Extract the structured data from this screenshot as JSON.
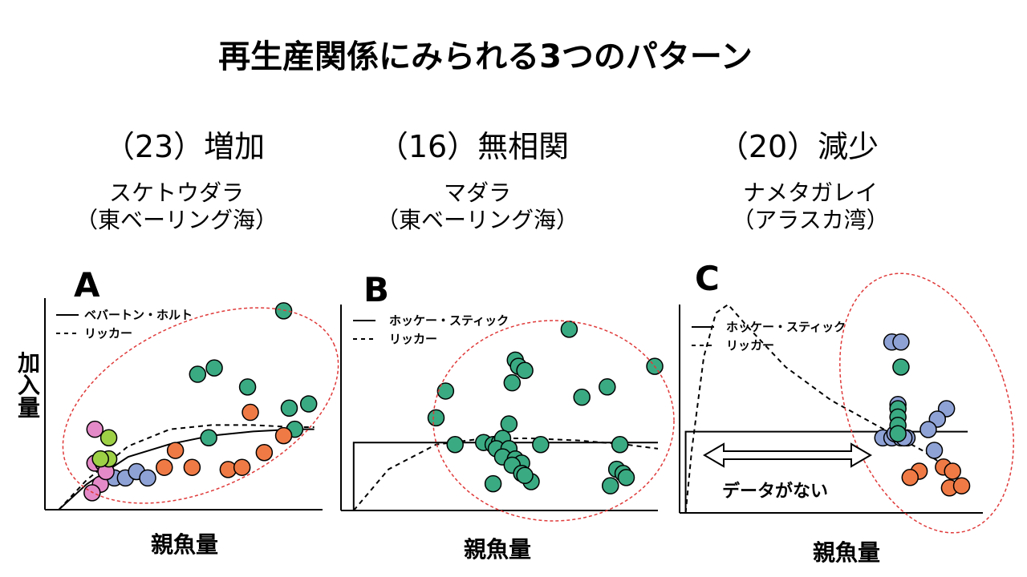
{
  "title": "再生産関係にみられる3つのパターン",
  "y_label": "加入量",
  "x_label": "親魚量",
  "panels": [
    {
      "heading": "（23）増加",
      "species_line1": "スケトウダラ",
      "species_line2": "（東ベーリング海）"
    },
    {
      "heading": "（16）無相関",
      "species_line1": "マダラ",
      "species_line2": "（東ベーリング海）"
    },
    {
      "heading": "（20）減少",
      "species_line1": "ナメタガレイ",
      "species_line2": "（アラスカ湾）"
    }
  ],
  "colors": {
    "green": "#3aaa82",
    "orange": "#f07a45",
    "blue": "#8fa2d6",
    "pink": "#e58ac8",
    "lime": "#9ed046",
    "ellipse": "#e03a3a"
  },
  "chart_data": [
    {
      "type": "scatter",
      "panel_label": "A",
      "x_label": "親魚量",
      "y_label": "加入量",
      "legend": [
        {
          "label": "ベバートン・ホルト",
          "style": "solid"
        },
        {
          "label": "リッカー",
          "style": "dashed"
        }
      ],
      "xlim": [
        0,
        100
      ],
      "ylim": [
        0,
        100
      ],
      "series": [
        {
          "color": "green",
          "points": [
            [
              86,
              94
            ],
            [
              55,
              64
            ],
            [
              61,
              67
            ],
            [
              73,
              58
            ],
            [
              95,
              50
            ],
            [
              88,
              48
            ],
            [
              90,
              38
            ],
            [
              59,
              34
            ]
          ]
        },
        {
          "color": "orange",
          "points": [
            [
              74,
              46
            ],
            [
              86,
              35
            ],
            [
              79,
              27
            ],
            [
              47,
              28
            ],
            [
              43,
              20
            ],
            [
              53,
              20
            ],
            [
              66,
              19
            ],
            [
              71,
              20
            ]
          ]
        },
        {
          "color": "blue",
          "points": [
            [
              25,
              15
            ],
            [
              29,
              15
            ],
            [
              33,
              18
            ],
            [
              37,
              15
            ]
          ]
        },
        {
          "color": "pink",
          "points": [
            [
              18,
              38
            ],
            [
              18,
              22
            ],
            [
              21,
              22
            ],
            [
              20,
              12
            ],
            [
              17,
              8
            ],
            [
              22,
              18
            ]
          ]
        },
        {
          "color": "lime",
          "points": [
            [
              23,
              34
            ],
            [
              23,
              24
            ],
            [
              20,
              24
            ]
          ]
        }
      ],
      "curves": [
        {
          "name": "ベバートン・ホルト",
          "style": "solid",
          "points": [
            [
              5,
              0
            ],
            [
              15,
              12
            ],
            [
              30,
              25
            ],
            [
              45,
              31
            ],
            [
              60,
              35
            ],
            [
              75,
              37
            ],
            [
              90,
              38
            ],
            [
              97,
              38
            ]
          ]
        },
        {
          "name": "リッカー",
          "style": "dashed",
          "points": [
            [
              5,
              0
            ],
            [
              15,
              14
            ],
            [
              30,
              30
            ],
            [
              45,
              38
            ],
            [
              60,
              40
            ],
            [
              75,
              40
            ],
            [
              90,
              39
            ],
            [
              97,
              39
            ]
          ]
        }
      ],
      "highlight_ellipse": true
    },
    {
      "type": "scatter",
      "panel_label": "B",
      "x_label": "親魚量",
      "y_label": "加入量",
      "legend": [
        {
          "label": "ホッケー・スティック",
          "style": "solid"
        },
        {
          "label": "リッカー",
          "style": "dashed"
        }
      ],
      "xlim": [
        0,
        100
      ],
      "ylim": [
        0,
        100
      ],
      "series": [
        {
          "color": "green",
          "points": [
            [
              72,
              88
            ],
            [
              55,
              73
            ],
            [
              56,
              70
            ],
            [
              58,
              68
            ],
            [
              54,
              62
            ],
            [
              99,
              70
            ],
            [
              33,
              58
            ],
            [
              84,
              60
            ],
            [
              76,
              55
            ],
            [
              30,
              45
            ],
            [
              53,
              42
            ],
            [
              36,
              32
            ],
            [
              45,
              33
            ],
            [
              48,
              32
            ],
            [
              50,
              33
            ],
            [
              51,
              35
            ],
            [
              49,
              30
            ],
            [
              53,
              30
            ],
            [
              63,
              32
            ],
            [
              88,
              32
            ],
            [
              51,
              26
            ],
            [
              55,
              25
            ],
            [
              57,
              23
            ],
            [
              54,
              22
            ],
            [
              57,
              18
            ],
            [
              60,
              14
            ],
            [
              87,
              20
            ],
            [
              89,
              18
            ],
            [
              90,
              16
            ],
            [
              48,
              13
            ],
            [
              58,
              17
            ],
            [
              85,
              12
            ]
          ]
        }
      ],
      "curves": [
        {
          "name": "ホッケー・スティック",
          "style": "solid",
          "points": [
            [
              4,
              0
            ],
            [
              4,
              33
            ],
            [
              100,
              33
            ]
          ]
        },
        {
          "name": "リッカー",
          "style": "dashed",
          "points": [
            [
              4,
              0
            ],
            [
              15,
              20
            ],
            [
              30,
              32
            ],
            [
              45,
              35
            ],
            [
              60,
              35
            ],
            [
              75,
              34
            ],
            [
              90,
              32
            ],
            [
              100,
              30
            ]
          ]
        }
      ],
      "highlight_ellipse": true
    },
    {
      "type": "scatter",
      "panel_label": "C",
      "x_label": "親魚量",
      "y_label": "加入量",
      "legend": [
        {
          "label": "ホッケー・スティック",
          "style": "solid"
        },
        {
          "label": "リッカー",
          "style": "dashed"
        }
      ],
      "annotation": "データがない",
      "xlim": [
        0,
        100
      ],
      "ylim": [
        0,
        100
      ],
      "series": [
        {
          "color": "blue",
          "points": [
            [
              70,
              82
            ],
            [
              73,
              82
            ],
            [
              72,
              52
            ],
            [
              88,
              50
            ],
            [
              85,
              45
            ],
            [
              82,
              40
            ],
            [
              67,
              36
            ],
            [
              70,
              36
            ],
            [
              73,
              36
            ],
            [
              75,
              36
            ],
            [
              71,
              38
            ],
            [
              74,
              36
            ],
            [
              84,
              30
            ]
          ]
        },
        {
          "color": "green",
          "points": [
            [
              73,
              70
            ],
            [
              72,
              50
            ],
            [
              72,
              46
            ],
            [
              72,
              42
            ],
            [
              72,
              38
            ]
          ]
        },
        {
          "color": "orange",
          "points": [
            [
              79,
              20
            ],
            [
              76,
              17
            ],
            [
              87,
              22
            ],
            [
              90,
              20
            ],
            [
              89,
              12
            ],
            [
              93,
              13
            ]
          ]
        }
      ],
      "curves": [
        {
          "name": "ホッケー・スティック",
          "style": "solid",
          "points": [
            [
              2,
              0
            ],
            [
              2,
              39
            ],
            [
              95,
              39
            ]
          ]
        },
        {
          "name": "リッカー",
          "style": "dashed",
          "points": [
            [
              2,
              0
            ],
            [
              4,
              30
            ],
            [
              8,
              75
            ],
            [
              12,
              96
            ],
            [
              16,
              100
            ],
            [
              22,
              90
            ],
            [
              35,
              70
            ],
            [
              50,
              54
            ],
            [
              65,
              42
            ],
            [
              80,
              30
            ],
            [
              95,
              15
            ]
          ]
        }
      ],
      "highlight_ellipse": true
    }
  ]
}
